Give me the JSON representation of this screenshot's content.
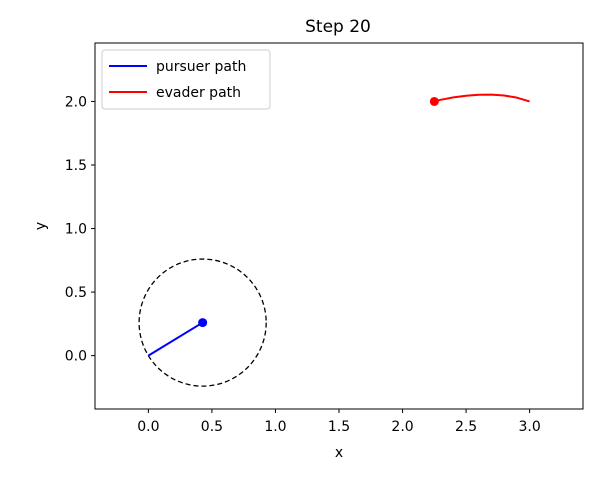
{
  "chart_data": {
    "type": "line",
    "title": "Step 20",
    "xlabel": "x",
    "ylabel": "y",
    "xlim": [
      -0.42,
      3.42
    ],
    "ylim": [
      -0.42,
      2.46
    ],
    "x_ticks": [
      0.0,
      0.5,
      1.0,
      1.5,
      2.0,
      2.5,
      3.0
    ],
    "x_tick_labels": [
      "0.0",
      "0.5",
      "1.0",
      "1.5",
      "2.0",
      "2.5",
      "3.0"
    ],
    "y_ticks": [
      0.0,
      0.5,
      1.0,
      1.5,
      2.0
    ],
    "y_tick_labels": [
      "0.0",
      "0.5",
      "1.0",
      "1.5",
      "2.0"
    ],
    "grid": false,
    "legend_position": "upper-left",
    "series": [
      {
        "name": "pursuer path",
        "color": "#0000ff",
        "x": [
          0.0,
          0.427
        ],
        "y": [
          0.0,
          0.26
        ],
        "current": {
          "x": 0.427,
          "y": 0.26
        }
      },
      {
        "name": "evader path",
        "color": "#ff0000",
        "x": [
          3.0,
          2.9,
          2.8,
          2.7,
          2.6,
          2.5,
          2.4,
          2.3,
          2.25
        ],
        "y": [
          2.0,
          2.03,
          2.047,
          2.054,
          2.053,
          2.045,
          2.032,
          2.013,
          2.0
        ],
        "current": {
          "x": 2.25,
          "y": 2.0
        }
      }
    ],
    "capture_circle": {
      "center": {
        "x": 0.427,
        "y": 0.26
      },
      "radius": 0.5,
      "style": "dashed",
      "color": "#000000"
    }
  }
}
